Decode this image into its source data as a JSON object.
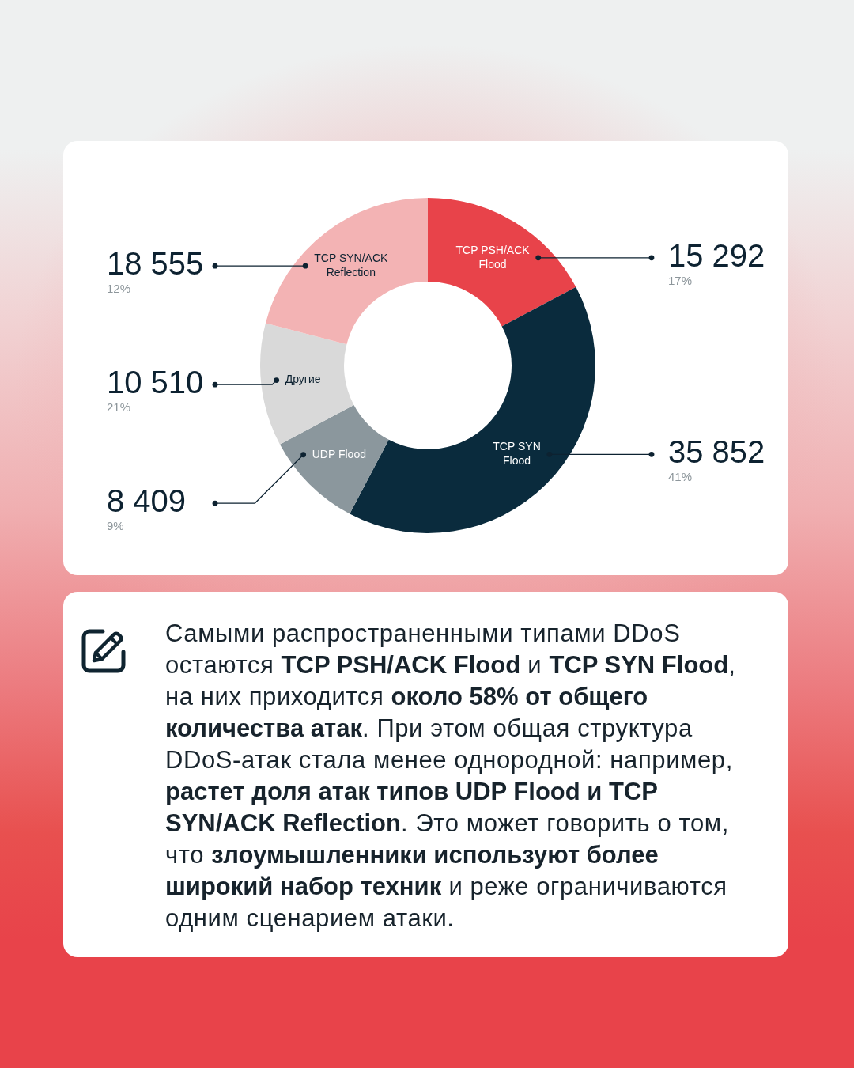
{
  "chart_data": {
    "type": "donut",
    "categories": [
      "TCP PSH/ACK Flood",
      "TCP SYN Flood",
      "UDP Flood",
      "Другие",
      "TCP SYN/ACK Reflection"
    ],
    "values": [
      15292,
      35852,
      8409,
      10510,
      18555
    ],
    "colors": [
      "#e8434a",
      "#0a2b3d",
      "#8b979d",
      "#d9d9d9",
      "#f3b3b4"
    ],
    "value_labels": [
      "15 292\n17%",
      "35 852\n41%",
      "8 409\n9%",
      "10 510\n21%",
      "18 555\n12%"
    ],
    "annotations": [
      "Самыми распространенными типами DDoS остаются ",
      "TCP PSH/ACK Flood",
      " и ",
      "TCP SYN Flood",
      ", на них приходится ",
      "около 58% от общего количества атак",
      ". При этом общая структура DDoS-атак стала менее однородной: например, ",
      "растет доля атак типов UDP Flood и TCP SYN/ACK Reflection",
      ". Это может говорить о том, что ",
      "злоумышленники используют более широкий набор техник",
      " и реже ограничиваются одним сценарием атаки."
    ]
  }
}
